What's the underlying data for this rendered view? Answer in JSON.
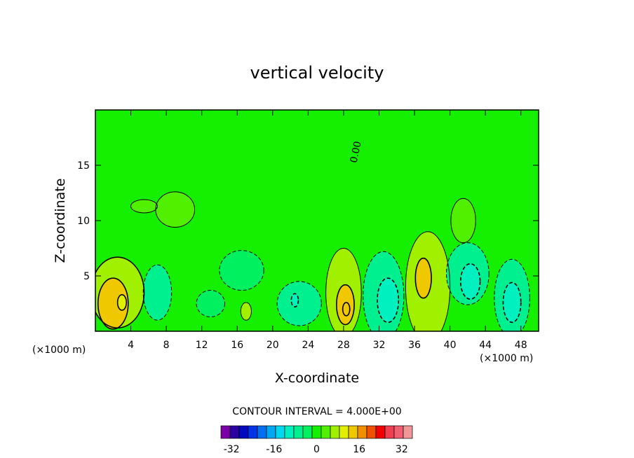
{
  "chart_data": {
    "type": "heatmap",
    "title": "vertical velocity",
    "xlabel": "X-coordinate",
    "ylabel": "Z-coordinate",
    "x_unit": "(×1000 m)",
    "x_unit_right": "(×1000 m)",
    "xlim": [
      0,
      50
    ],
    "ylim": [
      0,
      20
    ],
    "xticks": [
      4,
      8,
      12,
      16,
      20,
      24,
      28,
      32,
      36,
      40,
      44,
      48
    ],
    "yticks": [
      5,
      10,
      15
    ],
    "contour_interval_text": "CONTOUR INTERVAL = 4.000E+00",
    "contour_interval": 4,
    "zero_contour_label": "0.00",
    "colorbar": {
      "min": -36,
      "max": 36,
      "tick_labels": [
        "-32",
        "-16",
        "0",
        "16",
        "32"
      ],
      "tick_values": [
        -32,
        -16,
        0,
        16,
        32
      ],
      "colors": [
        "#7b00a8",
        "#2a00a0",
        "#0008c0",
        "#0034e6",
        "#0070f0",
        "#00a8f4",
        "#00d8f0",
        "#00f0c0",
        "#00f090",
        "#00f060",
        "#14f000",
        "#50f000",
        "#a0f000",
        "#e0f000",
        "#f0c800",
        "#f09000",
        "#f05000",
        "#f00000",
        "#f04050",
        "#f06070",
        "#f09898"
      ]
    },
    "regions": [
      {
        "kind": "background",
        "value": 1
      },
      {
        "kind": "blob",
        "x": 2.5,
        "z": 3.5,
        "rx": 3.0,
        "rz": 3.2,
        "value": 8
      },
      {
        "kind": "blob",
        "x": 2.0,
        "z": 2.5,
        "rx": 1.7,
        "rz": 2.3,
        "value": 12
      },
      {
        "kind": "blob",
        "x": 3.0,
        "z": 2.6,
        "rx": 0.5,
        "rz": 0.7,
        "value": 10
      },
      {
        "kind": "blob",
        "x": 7.0,
        "z": 3.5,
        "rx": 1.6,
        "rz": 2.5,
        "value": -6
      },
      {
        "kind": "blob",
        "x": 16.5,
        "z": 5.5,
        "rx": 2.5,
        "rz": 1.8,
        "value": -4
      },
      {
        "kind": "blob",
        "x": 13.0,
        "z": 2.5,
        "rx": 1.6,
        "rz": 1.2,
        "value": -4
      },
      {
        "kind": "blob",
        "x": 17.0,
        "z": 1.8,
        "rx": 0.6,
        "rz": 0.8,
        "value": 6
      },
      {
        "kind": "blob",
        "x": 23.0,
        "z": 2.5,
        "rx": 2.5,
        "rz": 2.0,
        "value": -6
      },
      {
        "kind": "blob",
        "x": 22.5,
        "z": 2.8,
        "rx": 0.4,
        "rz": 0.6,
        "value": -10
      },
      {
        "kind": "blob",
        "x": 28.0,
        "z": 3.5,
        "rx": 2.0,
        "rz": 4.0,
        "value": 6
      },
      {
        "kind": "blob",
        "x": 28.2,
        "z": 2.4,
        "rx": 1.0,
        "rz": 1.8,
        "value": 12
      },
      {
        "kind": "blob",
        "x": 28.3,
        "z": 2.0,
        "rx": 0.4,
        "rz": 0.6,
        "value": 14
      },
      {
        "kind": "blob",
        "x": 32.5,
        "z": 3.2,
        "rx": 2.3,
        "rz": 4.0,
        "value": -6
      },
      {
        "kind": "blob",
        "x": 33.0,
        "z": 2.8,
        "rx": 1.2,
        "rz": 2.0,
        "value": -10
      },
      {
        "kind": "blob",
        "x": 37.5,
        "z": 4.0,
        "rx": 2.5,
        "rz": 5.0,
        "value": 6
      },
      {
        "kind": "blob",
        "x": 37.0,
        "z": 4.8,
        "rx": 0.9,
        "rz": 1.8,
        "value": 12
      },
      {
        "kind": "blob",
        "x": 42.0,
        "z": 5.2,
        "rx": 2.4,
        "rz": 2.8,
        "value": -6
      },
      {
        "kind": "blob",
        "x": 42.3,
        "z": 4.5,
        "rx": 1.1,
        "rz": 1.6,
        "value": -10
      },
      {
        "kind": "blob",
        "x": 47.0,
        "z": 3.0,
        "rx": 2.0,
        "rz": 3.5,
        "value": -6
      },
      {
        "kind": "blob",
        "x": 47.0,
        "z": 2.6,
        "rx": 1.0,
        "rz": 1.8,
        "value": -10
      },
      {
        "kind": "blob",
        "x": 41.5,
        "z": 10.0,
        "rx": 1.4,
        "rz": 2.0,
        "value": 4
      },
      {
        "kind": "blob",
        "x": 9.0,
        "z": 11.0,
        "rx": 2.2,
        "rz": 1.6,
        "value": 3
      },
      {
        "kind": "blob",
        "x": 5.5,
        "z": 11.3,
        "rx": 1.5,
        "rz": 0.6,
        "value": 5
      }
    ]
  }
}
